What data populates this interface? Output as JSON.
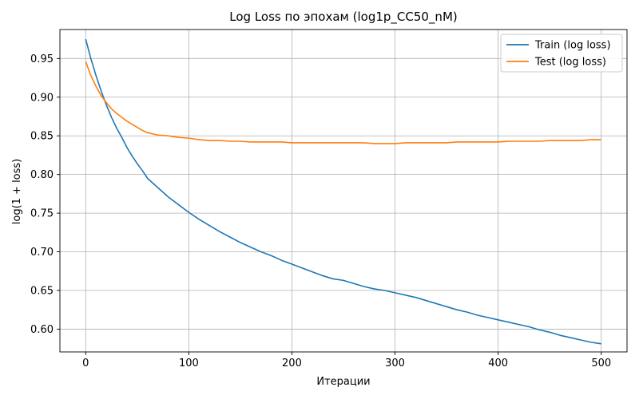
{
  "chart_data": {
    "type": "line",
    "title": "Log Loss по эпохам (log1p_CC50_nM)",
    "xlabel": "Итерации",
    "ylabel": "log(1 + loss)",
    "xlim": [
      -25,
      525
    ],
    "ylim": [
      0.5705,
      0.9875
    ],
    "xticks": [
      0,
      100,
      200,
      300,
      400,
      500
    ],
    "yticks": [
      0.6,
      0.65,
      0.7,
      0.75,
      0.8,
      0.85,
      0.9,
      0.95
    ],
    "grid": true,
    "legend_position": "top-right",
    "series": [
      {
        "name": "Train (log loss)",
        "color": "#1f77b4",
        "points": [
          [
            0,
            0.975
          ],
          [
            5,
            0.95
          ],
          [
            10,
            0.928
          ],
          [
            15,
            0.908
          ],
          [
            20,
            0.89
          ],
          [
            25,
            0.874
          ],
          [
            30,
            0.86
          ],
          [
            35,
            0.848
          ],
          [
            40,
            0.835
          ],
          [
            45,
            0.824
          ],
          [
            50,
            0.814
          ],
          [
            55,
            0.805
          ],
          [
            60,
            0.795
          ],
          [
            70,
            0.783
          ],
          [
            80,
            0.771
          ],
          [
            90,
            0.761
          ],
          [
            100,
            0.751
          ],
          [
            110,
            0.742
          ],
          [
            120,
            0.734
          ],
          [
            130,
            0.726
          ],
          [
            140,
            0.719
          ],
          [
            150,
            0.712
          ],
          [
            160,
            0.706
          ],
          [
            170,
            0.7
          ],
          [
            180,
            0.695
          ],
          [
            190,
            0.689
          ],
          [
            200,
            0.684
          ],
          [
            210,
            0.679
          ],
          [
            220,
            0.674
          ],
          [
            230,
            0.669
          ],
          [
            240,
            0.665
          ],
          [
            250,
            0.663
          ],
          [
            260,
            0.659
          ],
          [
            270,
            0.655
          ],
          [
            280,
            0.652
          ],
          [
            290,
            0.65
          ],
          [
            300,
            0.647
          ],
          [
            310,
            0.644
          ],
          [
            320,
            0.641
          ],
          [
            330,
            0.637
          ],
          [
            340,
            0.633
          ],
          [
            350,
            0.629
          ],
          [
            360,
            0.625
          ],
          [
            370,
            0.622
          ],
          [
            380,
            0.618
          ],
          [
            390,
            0.615
          ],
          [
            400,
            0.612
          ],
          [
            410,
            0.609
          ],
          [
            420,
            0.606
          ],
          [
            430,
            0.603
          ],
          [
            440,
            0.599
          ],
          [
            450,
            0.596
          ],
          [
            460,
            0.592
          ],
          [
            470,
            0.589
          ],
          [
            480,
            0.586
          ],
          [
            490,
            0.583
          ],
          [
            500,
            0.581
          ]
        ]
      },
      {
        "name": "Test (log loss)",
        "color": "#ff7f0e",
        "points": [
          [
            0,
            0.946
          ],
          [
            5,
            0.928
          ],
          [
            10,
            0.914
          ],
          [
            15,
            0.902
          ],
          [
            20,
            0.893
          ],
          [
            25,
            0.885
          ],
          [
            30,
            0.879
          ],
          [
            35,
            0.874
          ],
          [
            40,
            0.869
          ],
          [
            45,
            0.865
          ],
          [
            50,
            0.861
          ],
          [
            55,
            0.857
          ],
          [
            60,
            0.854
          ],
          [
            70,
            0.851
          ],
          [
            80,
            0.85
          ],
          [
            90,
            0.848
          ],
          [
            100,
            0.847
          ],
          [
            110,
            0.845
          ],
          [
            120,
            0.844
          ],
          [
            130,
            0.844
          ],
          [
            140,
            0.843
          ],
          [
            150,
            0.843
          ],
          [
            160,
            0.842
          ],
          [
            170,
            0.842
          ],
          [
            180,
            0.842
          ],
          [
            190,
            0.842
          ],
          [
            200,
            0.841
          ],
          [
            210,
            0.841
          ],
          [
            220,
            0.841
          ],
          [
            230,
            0.841
          ],
          [
            240,
            0.841
          ],
          [
            250,
            0.841
          ],
          [
            260,
            0.841
          ],
          [
            270,
            0.841
          ],
          [
            280,
            0.84
          ],
          [
            290,
            0.84
          ],
          [
            300,
            0.84
          ],
          [
            310,
            0.841
          ],
          [
            320,
            0.841
          ],
          [
            330,
            0.841
          ],
          [
            340,
            0.841
          ],
          [
            350,
            0.841
          ],
          [
            360,
            0.842
          ],
          [
            370,
            0.842
          ],
          [
            380,
            0.842
          ],
          [
            390,
            0.842
          ],
          [
            400,
            0.842
          ],
          [
            410,
            0.843
          ],
          [
            420,
            0.843
          ],
          [
            430,
            0.843
          ],
          [
            440,
            0.843
          ],
          [
            450,
            0.844
          ],
          [
            460,
            0.844
          ],
          [
            470,
            0.844
          ],
          [
            480,
            0.844
          ],
          [
            490,
            0.845
          ],
          [
            500,
            0.845
          ]
        ]
      }
    ]
  }
}
